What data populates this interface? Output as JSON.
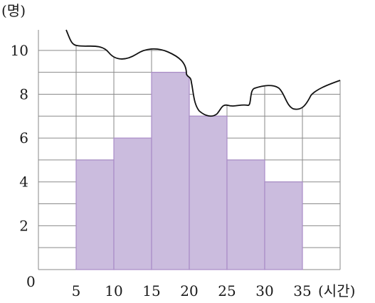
{
  "chart_data": {
    "type": "histogram",
    "x": [
      5,
      10,
      15,
      20,
      25,
      30,
      35
    ],
    "bins": [
      [
        5,
        10
      ],
      [
        10,
        15
      ],
      [
        15,
        20
      ],
      [
        20,
        25
      ],
      [
        25,
        30
      ],
      [
        30,
        35
      ]
    ],
    "values": [
      5,
      6,
      9,
      7,
      5,
      4
    ],
    "xlim": [
      0,
      40
    ],
    "ylim": [
      0,
      11
    ],
    "y_ticks": [
      0,
      2,
      4,
      6,
      8,
      10
    ],
    "x_ticks": [
      5,
      10,
      15,
      20,
      25,
      30,
      35
    ],
    "ylabel": "(명)",
    "xlabel": "(시간)",
    "origin_label": "0",
    "grid": true,
    "top_torn": true,
    "colors": {
      "bar_fill": "#cbbcde",
      "bar_edge": "#a98cc7",
      "grid": "#8a8a8a"
    }
  }
}
